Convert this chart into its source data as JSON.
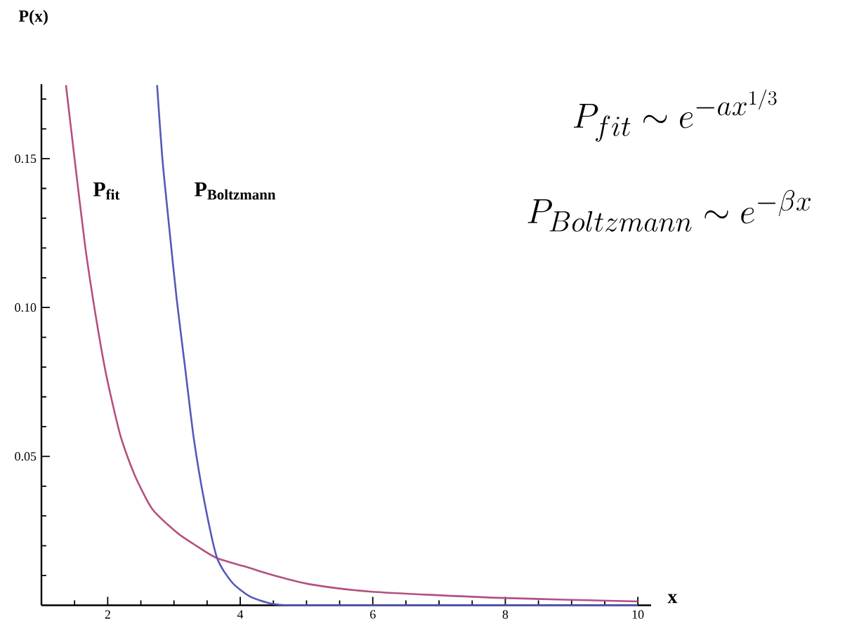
{
  "chart_data": {
    "type": "line",
    "xlabel": "x",
    "ylabel": "P(x)",
    "xlim": [
      1,
      10.2
    ],
    "ylim": [
      0,
      0.175
    ],
    "xticks": [
      {
        "value": 1.5,
        "label": null
      },
      2,
      {
        "value": 2.5,
        "label": null
      },
      {
        "value": 3,
        "label": null
      },
      {
        "value": 3.5,
        "label": null
      },
      4,
      {
        "value": 4.5,
        "label": null
      },
      {
        "value": 5,
        "label": null
      },
      {
        "value": 5.5,
        "label": null
      },
      6,
      {
        "value": 6.5,
        "label": null
      },
      {
        "value": 7,
        "label": null
      },
      {
        "value": 7.5,
        "label": null
      },
      8,
      {
        "value": 8.5,
        "label": null
      },
      {
        "value": 9,
        "label": null
      },
      {
        "value": 9.5,
        "label": null
      },
      10
    ],
    "yticks": [
      {
        "value": 0.01,
        "label": null
      },
      {
        "value": 0.02,
        "label": null
      },
      {
        "value": 0.03,
        "label": null
      },
      {
        "value": 0.04,
        "label": null
      },
      0.05,
      {
        "value": 0.06,
        "label": null
      },
      {
        "value": 0.07,
        "label": null
      },
      {
        "value": 0.08,
        "label": null
      },
      {
        "value": 0.09,
        "label": null
      },
      {
        "value": 0.1,
        "label": "0.10"
      },
      {
        "value": 0.11,
        "label": null
      },
      {
        "value": 0.12,
        "label": null
      },
      {
        "value": 0.13,
        "label": null
      },
      {
        "value": 0.14,
        "label": null
      },
      0.15,
      {
        "value": 0.16,
        "label": null
      },
      {
        "value": 0.17,
        "label": null
      }
    ],
    "grid": false,
    "marker": "none",
    "line_style": "solid",
    "series": [
      {
        "color": "#b4507f",
        "x": [
          1.37,
          1.5,
          1.66,
          1.82,
          1.98,
          2.19,
          2.4,
          2.67,
          3.04,
          3.3,
          3.64,
          4.09,
          4.53,
          5.04,
          5.96,
          7.89,
          10.0
        ],
        "values": [
          0.1747,
          0.15,
          0.1206,
          0.0971,
          0.0771,
          0.0571,
          0.0441,
          0.0324,
          0.0245,
          0.0205,
          0.0159,
          0.0129,
          0.0099,
          0.0071,
          0.0046,
          0.0025,
          0.0013
        ]
      },
      {
        "color": "#5558b8",
        "x": [
          2.745,
          2.825,
          2.93,
          3.04,
          3.17,
          3.3,
          3.46,
          3.65,
          3.88,
          4.15,
          4.46,
          4.77,
          6.0,
          10.0
        ],
        "values": [
          0.1747,
          0.15,
          0.1265,
          0.103,
          0.0794,
          0.0559,
          0.0347,
          0.0159,
          0.0076,
          0.0029,
          0.0006,
          0.0,
          0.0,
          0.0
        ]
      }
    ],
    "annotations": [
      "\\mathbf{P}_{\\mathbf{fit}}",
      "\\mathbf{P}_{\\mathbf{Boltzmann}}",
      "P_{fit} \\sim e^{-ax^{1/3}}",
      "P_{Boltzmann} \\sim e^{-\\beta x}"
    ]
  }
}
